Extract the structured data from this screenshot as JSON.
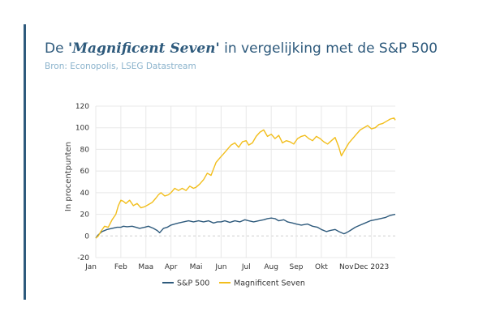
{
  "header": {
    "title_prefix": "De ",
    "title_emph": "'Magnificent Seven'",
    "title_suffix": " in vergelijking met de S&P 500",
    "subtitle": "Bron: Econopolis, LSEG Datastream"
  },
  "colors": {
    "sp500": "#2e5a7c",
    "mag7": "#f2be1c",
    "grid": "#e8e8e8",
    "zero": "#cfcfcf"
  },
  "chart_data": {
    "type": "line",
    "ylabel": "In procentpunten",
    "xlabel": "",
    "ylim": [
      -20,
      120
    ],
    "yticks": [
      -20,
      0,
      20,
      40,
      60,
      80,
      100,
      120
    ],
    "xlim": [
      0,
      11.95
    ],
    "xticks": [
      {
        "pos": 0,
        "label": "Jan"
      },
      {
        "pos": 1,
        "label": "Feb"
      },
      {
        "pos": 2,
        "label": "Maa"
      },
      {
        "pos": 3,
        "label": "Apr"
      },
      {
        "pos": 4,
        "label": "Mai"
      },
      {
        "pos": 5,
        "label": "Jun"
      },
      {
        "pos": 6,
        "label": "Jul"
      },
      {
        "pos": 7,
        "label": "Aug"
      },
      {
        "pos": 8,
        "label": "Sep"
      },
      {
        "pos": 9,
        "label": "Okt"
      },
      {
        "pos": 10,
        "label": "Nov"
      },
      {
        "pos": 11,
        "label": "Dec 2023"
      }
    ],
    "grid": true,
    "legend_position": "bottom-center",
    "series": [
      {
        "name": "S&P 500",
        "color": "#2e5a7c",
        "x": [
          0,
          0.1,
          0.25,
          0.45,
          0.65,
          0.85,
          1.0,
          1.1,
          1.25,
          1.45,
          1.6,
          1.75,
          1.95,
          2.1,
          2.3,
          2.45,
          2.55,
          2.7,
          2.85,
          3.0,
          3.15,
          3.3,
          3.5,
          3.7,
          3.9,
          4.1,
          4.3,
          4.5,
          4.7,
          4.85,
          5.0,
          5.15,
          5.35,
          5.55,
          5.75,
          5.95,
          6.1,
          6.3,
          6.5,
          6.7,
          6.85,
          7.0,
          7.15,
          7.3,
          7.5,
          7.65,
          7.85,
          8.0,
          8.2,
          8.45,
          8.65,
          8.85,
          9.0,
          9.2,
          9.35,
          9.55,
          9.7,
          9.9,
          10.0,
          10.15,
          10.35,
          10.55,
          10.75,
          10.95,
          11.15,
          11.35,
          11.55,
          11.75,
          11.95
        ],
        "y": [
          -2,
          1,
          4,
          6,
          7,
          8,
          8,
          9,
          8.5,
          9,
          8,
          7,
          8,
          9,
          7,
          5,
          3,
          7,
          8,
          10,
          11,
          12,
          13,
          14,
          13,
          14,
          13,
          14,
          12,
          13,
          13,
          14,
          12.5,
          14,
          13,
          15,
          14,
          13,
          14,
          15,
          16,
          16.5,
          16,
          14,
          15,
          13,
          12,
          11,
          10,
          11,
          9,
          8,
          6,
          4,
          5,
          6,
          4,
          2,
          3,
          5,
          8,
          10,
          12,
          14,
          15,
          16,
          17,
          19,
          20
        ]
      },
      {
        "name": "Magnificent Seven",
        "color": "#f2be1c",
        "x": [
          0,
          0.1,
          0.2,
          0.35,
          0.5,
          0.65,
          0.8,
          0.9,
          1.0,
          1.1,
          1.2,
          1.35,
          1.5,
          1.65,
          1.8,
          1.95,
          2.1,
          2.25,
          2.4,
          2.5,
          2.6,
          2.75,
          2.9,
          3.0,
          3.15,
          3.3,
          3.45,
          3.6,
          3.75,
          3.9,
          4.0,
          4.15,
          4.3,
          4.45,
          4.6,
          4.7,
          4.8,
          4.95,
          5.1,
          5.25,
          5.4,
          5.55,
          5.7,
          5.85,
          6.0,
          6.1,
          6.25,
          6.4,
          6.55,
          6.7,
          6.85,
          7.0,
          7.15,
          7.3,
          7.45,
          7.6,
          7.75,
          7.9,
          8.05,
          8.2,
          8.35,
          8.5,
          8.65,
          8.8,
          8.95,
          9.1,
          9.25,
          9.4,
          9.55,
          9.7,
          9.8,
          9.95,
          10.1,
          10.25,
          10.4,
          10.55,
          10.7,
          10.85,
          11.0,
          11.15,
          11.3,
          11.45,
          11.6,
          11.75,
          11.9,
          11.95
        ],
        "y": [
          -2,
          0,
          4,
          9,
          8,
          15,
          20,
          28,
          33,
          32,
          30,
          33,
          28,
          30,
          26,
          27,
          29,
          31,
          35,
          38,
          40,
          37,
          38,
          40,
          44,
          42,
          44,
          42,
          46,
          44,
          45,
          48,
          52,
          58,
          56,
          62,
          68,
          72,
          76,
          80,
          84,
          86,
          82,
          87,
          88,
          84,
          86,
          92,
          96,
          98,
          92,
          94,
          90,
          93,
          86,
          88,
          87,
          85,
          90,
          92,
          93,
          90,
          88,
          92,
          90,
          87,
          85,
          88,
          91,
          82,
          74,
          80,
          86,
          90,
          94,
          98,
          100,
          102,
          99,
          100,
          103,
          104,
          106,
          108,
          109,
          107
        ]
      }
    ]
  }
}
